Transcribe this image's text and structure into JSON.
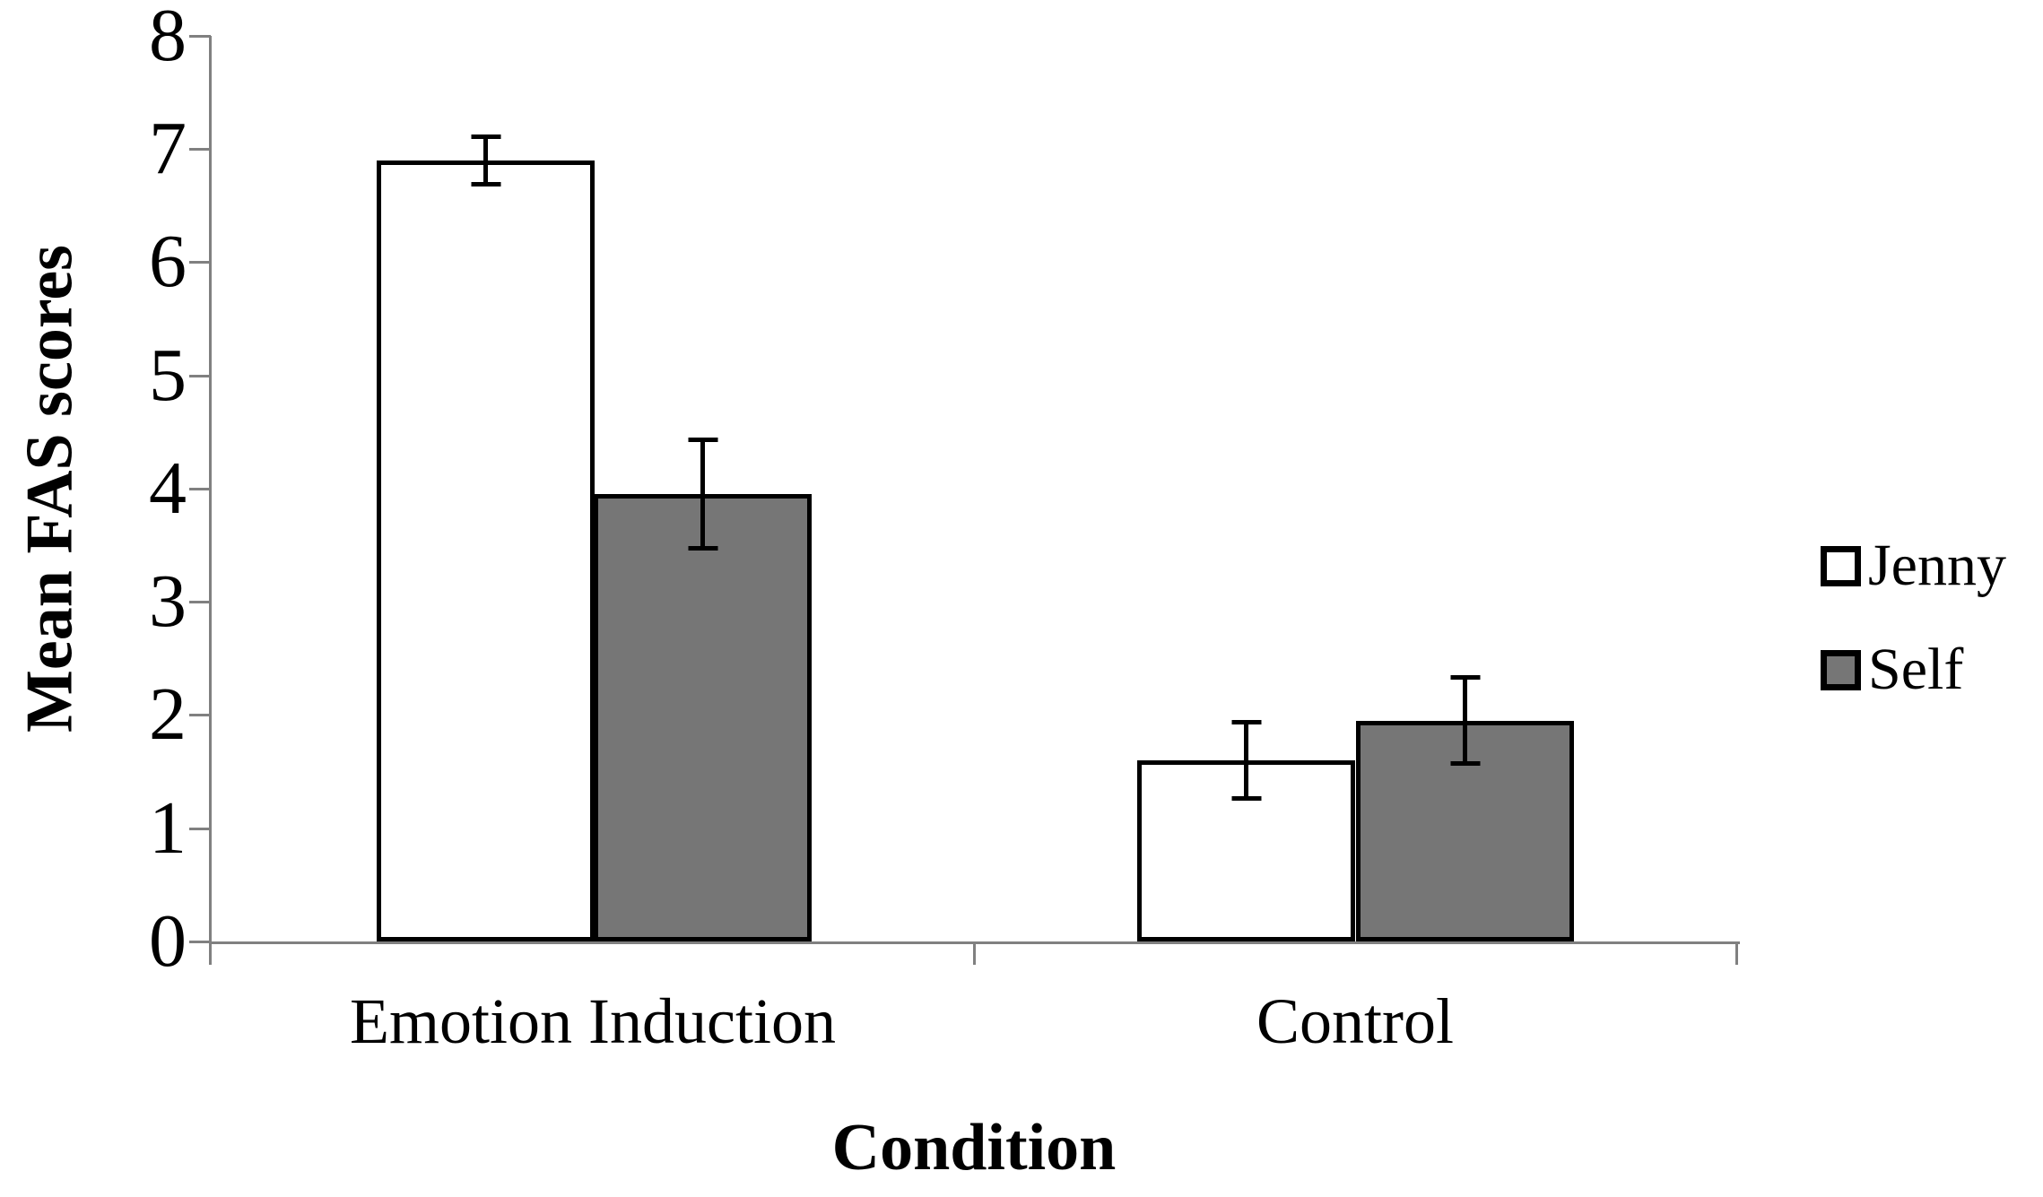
{
  "chart_data": {
    "type": "bar",
    "title": "",
    "xlabel": "Condition",
    "ylabel": "Mean FAS scores",
    "categories": [
      "Emotion Induction",
      "Control"
    ],
    "series": [
      {
        "name": "Jenny",
        "fill": "#FFFFFF",
        "values": [
          6.9,
          1.6
        ],
        "errors": [
          0.23,
          0.36
        ]
      },
      {
        "name": "Self",
        "fill": "#767676",
        "values": [
          3.95,
          1.95
        ],
        "errors": [
          0.5,
          0.4
        ]
      }
    ],
    "ylim": [
      0,
      8
    ],
    "yticks": [
      0,
      1,
      2,
      3,
      4,
      5,
      6,
      7,
      8
    ],
    "grid": false,
    "legend_position": "right",
    "axis_color": "#808080",
    "bar_border_color": "#000000",
    "error_bar_color": "#000000",
    "text_color": "#000000"
  }
}
